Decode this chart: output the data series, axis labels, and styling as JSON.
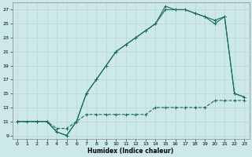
{
  "xlabel": "Humidex (Indice chaleur)",
  "background_color": "#cce8e8",
  "grid_color": "#b8d4d4",
  "line_color": "#1a6b5a",
  "xlim": [
    -0.5,
    23.5
  ],
  "ylim": [
    8.5,
    28
  ],
  "xticks": [
    0,
    1,
    2,
    3,
    4,
    5,
    6,
    7,
    8,
    9,
    10,
    11,
    12,
    13,
    14,
    15,
    16,
    17,
    18,
    19,
    20,
    21,
    22,
    23
  ],
  "yticks": [
    9,
    11,
    13,
    15,
    17,
    19,
    21,
    23,
    25,
    27
  ],
  "line1_x": [
    0,
    1,
    2,
    3,
    4,
    5,
    6,
    7,
    8,
    9,
    10,
    11,
    12,
    13,
    14,
    15,
    16,
    17,
    18,
    19,
    20,
    21,
    22,
    23
  ],
  "line1_y": [
    11,
    11,
    11,
    11,
    10,
    10,
    11,
    12,
    12,
    12,
    12,
    12,
    12,
    12,
    13,
    13,
    13,
    13,
    13,
    13,
    14,
    14,
    14,
    14
  ],
  "line2_x": [
    0,
    2,
    3,
    4,
    5,
    6,
    7,
    8,
    9,
    10,
    11,
    12,
    13,
    14,
    15,
    16,
    17,
    18,
    19,
    20,
    21,
    22,
    23
  ],
  "line2_y": [
    11,
    11,
    11,
    9.5,
    9,
    11,
    15,
    17,
    19,
    21,
    22,
    23,
    24,
    25,
    27.5,
    27,
    27,
    26.5,
    26,
    25.5,
    26,
    15,
    14.5
  ],
  "line3_x": [
    0,
    2,
    3,
    4,
    5,
    6,
    7,
    8,
    9,
    10,
    11,
    12,
    13,
    14,
    15,
    16,
    17,
    18,
    19,
    20,
    21,
    22,
    23
  ],
  "line3_y": [
    11,
    11,
    11,
    9.5,
    9,
    11,
    15,
    17,
    19,
    21,
    22,
    23,
    24,
    25,
    27,
    27,
    27,
    26.5,
    26,
    25,
    26,
    15,
    14.5
  ]
}
